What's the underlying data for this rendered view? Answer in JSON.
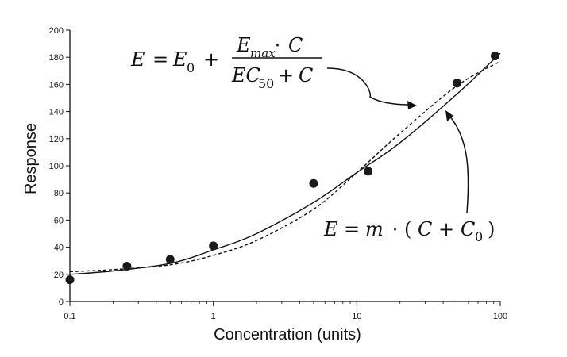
{
  "chart_data": {
    "type": "scatter",
    "title": "",
    "xlabel": "Concentration (units)",
    "ylabel": "Response",
    "x_scale": "log",
    "xlim": [
      0.1,
      100
    ],
    "ylim": [
      0,
      200
    ],
    "x_ticks": [
      0.1,
      1,
      10,
      100
    ],
    "x_tick_labels": [
      "0.1",
      "1",
      "10",
      "100"
    ],
    "y_ticks": [
      0,
      20,
      40,
      60,
      80,
      100,
      120,
      140,
      160,
      180,
      200
    ],
    "y_tick_labels": [
      "0",
      "20",
      "40",
      "60",
      "80",
      "100",
      "120",
      "140",
      "160",
      "180",
      "200"
    ],
    "grid": false,
    "legend": "none",
    "series": [
      {
        "kind": "points",
        "x": [
          0.1,
          0.25,
          0.5,
          1,
          5,
          12,
          50,
          92
        ],
        "y": [
          16,
          26,
          31,
          41,
          87,
          96,
          161,
          181
        ]
      },
      {
        "kind": "fit-curve",
        "line_style": "dashed",
        "equation_label": "E = E0 + Emax·C / (EC50 + C)",
        "x": [
          0.1,
          0.2,
          0.5,
          1,
          2,
          5,
          10,
          20,
          50,
          100
        ],
        "y": [
          22,
          23.5,
          27,
          34,
          45,
          68,
          95,
          124,
          159,
          177
        ]
      },
      {
        "kind": "fit-curve",
        "line_style": "solid",
        "equation_label": "E = m · ( C + C0)",
        "x": [
          0.1,
          0.2,
          0.5,
          1,
          2,
          5,
          10,
          20,
          50,
          100
        ],
        "y": [
          20,
          22.5,
          28,
          38,
          50,
          73,
          95,
          117,
          153,
          183
        ]
      }
    ]
  }
}
